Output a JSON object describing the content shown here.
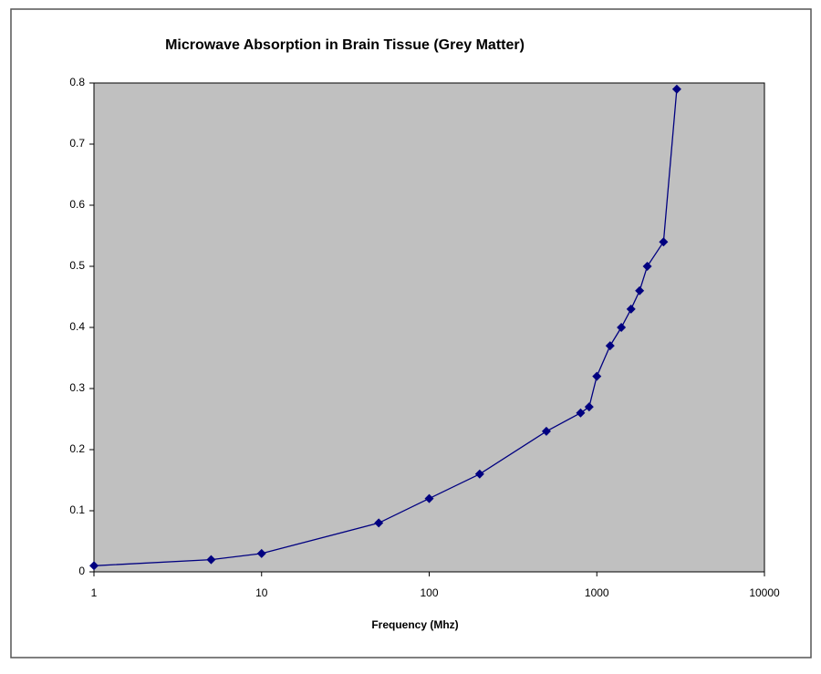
{
  "chart_data": {
    "type": "line",
    "title": "Microwave Absorption in Brain Tissue   (Grey Matter)",
    "x_label": "Frequency (Mhz)",
    "x": [
      1,
      5,
      10,
      50,
      100,
      200,
      500,
      800,
      900,
      1000,
      1200,
      1400,
      1600,
      1800,
      2000,
      2500,
      3000
    ],
    "values": [
      0.01,
      0.02,
      0.03,
      0.08,
      0.12,
      0.16,
      0.23,
      0.26,
      0.27,
      0.32,
      0.37,
      0.4,
      0.43,
      0.46,
      0.5,
      0.54,
      0.79
    ],
    "color": "#000080",
    "xscale": "log",
    "xlim": [
      1,
      10000
    ],
    "xticks": [
      1,
      10,
      100,
      1000,
      10000
    ],
    "ylim": [
      0,
      0.8
    ],
    "yticks": [
      0,
      0.1,
      0.2,
      0.3,
      0.4,
      0.5,
      0.6,
      0.7,
      0.8
    ],
    "plot_background": "#c0c0c0"
  }
}
